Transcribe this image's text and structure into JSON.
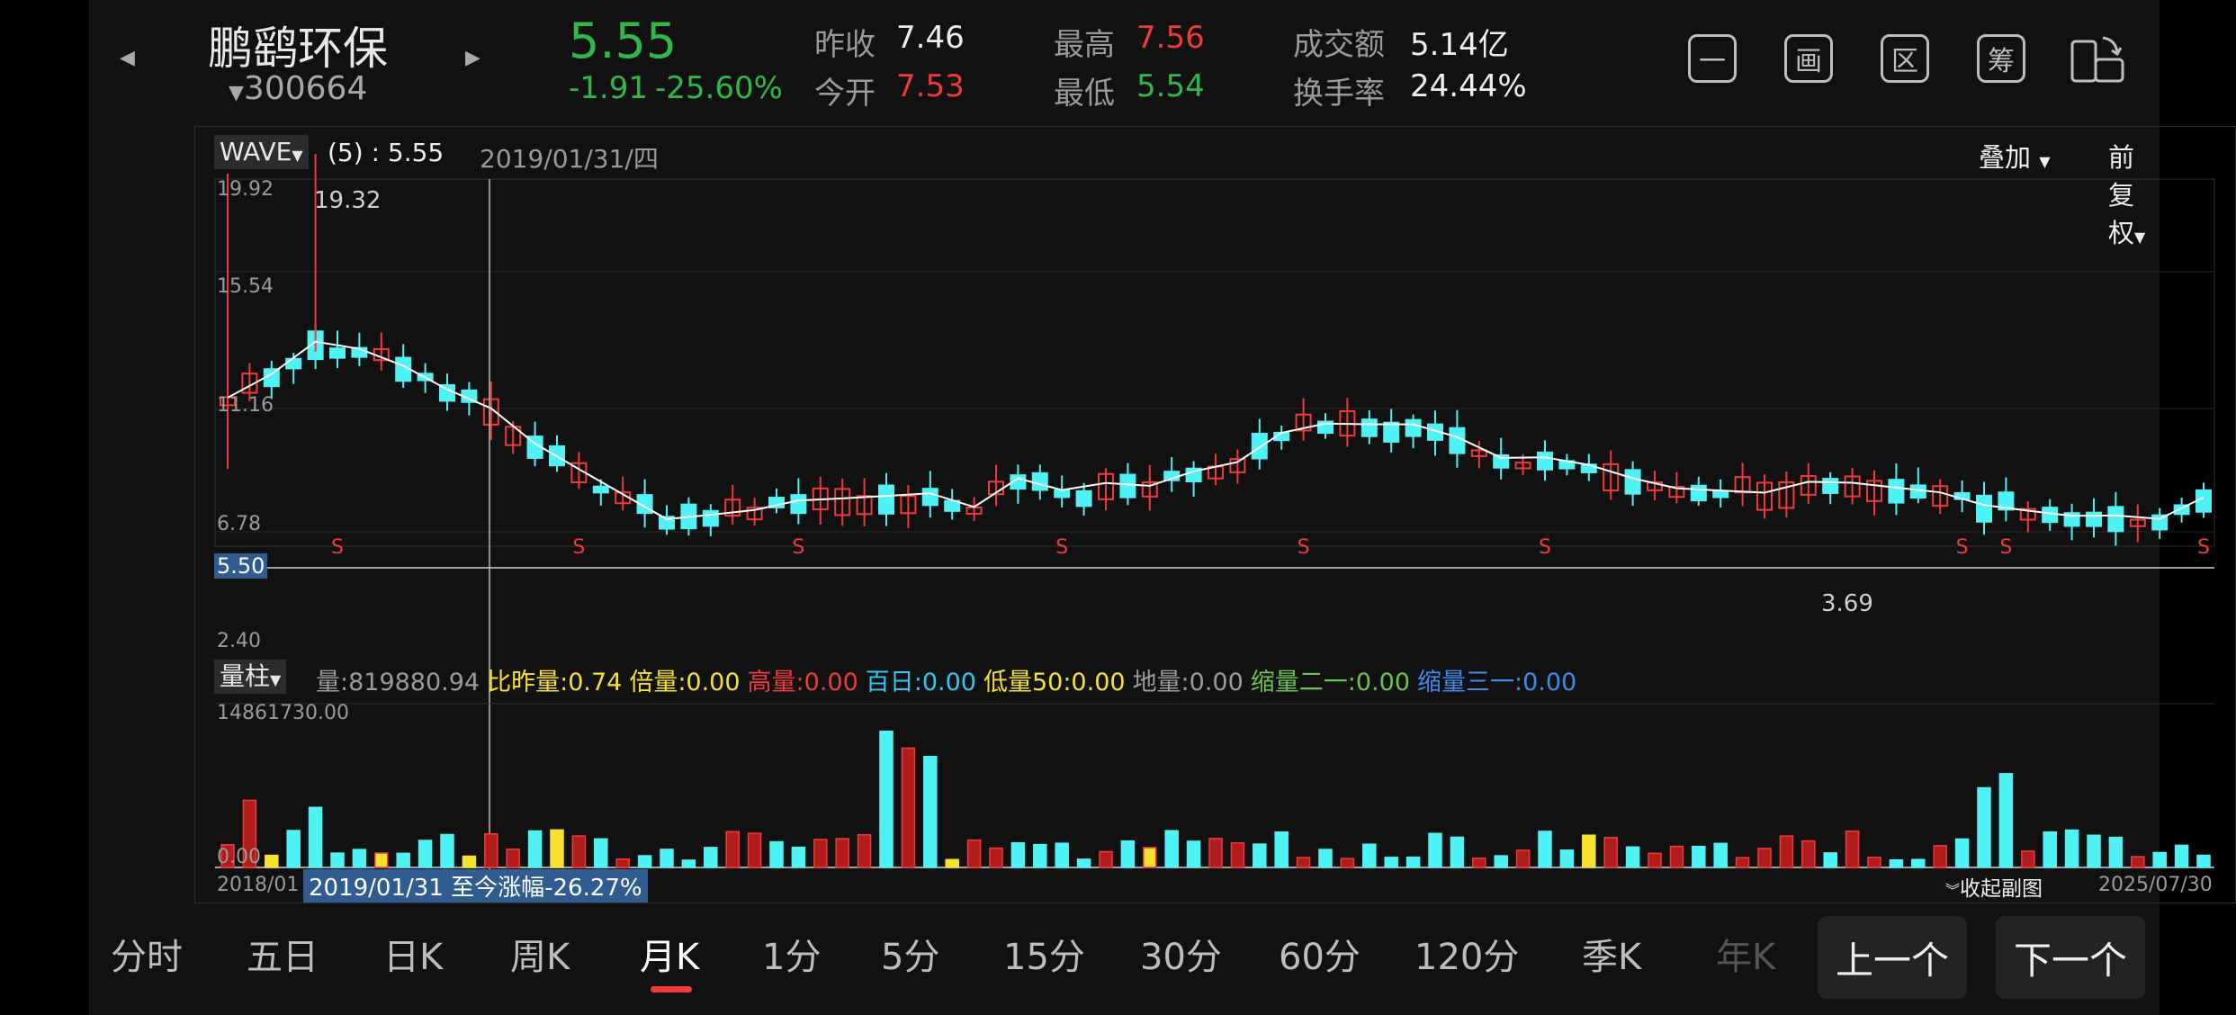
{
  "header": {
    "stock_name": "鹏鹞环保",
    "stock_code": "300664",
    "price": "5.55",
    "change": "-1.91",
    "change_pct": "-25.60%",
    "quotes": [
      {
        "label": "昨收",
        "value": "7.46"
      },
      {
        "label": "今开",
        "value": "7.53"
      },
      {
        "label": "最高",
        "value": "7.56"
      },
      {
        "label": "最低",
        "value": "5.54"
      },
      {
        "label": "成交额",
        "value": "5.14亿"
      },
      {
        "label": "换手率",
        "value": "24.44%"
      }
    ],
    "tool_buttons": [
      "⼀",
      "画",
      "区",
      "筹"
    ],
    "colors": {
      "up": "#f03a3a",
      "down": "#2fb84a",
      "cyan": "#4ff2f5"
    }
  },
  "main_chart": {
    "indicator": "WAVE",
    "indicator_value": "(5) : 5.55",
    "cursor_date": "2019/01/31/四",
    "overlay_button": "叠加",
    "adjust_button": "前复权",
    "y_labels": [
      "19.92",
      "15.54",
      "11.16",
      "6.78",
      "2.40"
    ],
    "current_price_tag": "5.50",
    "high_mark": "19.32",
    "low_mark": "3.69",
    "s_marker": "S"
  },
  "volume_panel": {
    "selector": "量柱",
    "stats": [
      {
        "label": "量:",
        "value": "819880.94",
        "color": "gray"
      },
      {
        "label": "比昨量:",
        "value": "0.74",
        "color": "yellow"
      },
      {
        "label": "倍量:",
        "value": "0.00",
        "color": "yellow"
      },
      {
        "label": "高量:",
        "value": "0.00",
        "color": "red"
      },
      {
        "label": "百日:",
        "value": "0.00",
        "color": "cyan"
      },
      {
        "label": "低量50:",
        "value": "0.00",
        "color": "yellow"
      },
      {
        "label": "地量:",
        "value": "0.00",
        "color": "gray"
      },
      {
        "label": "缩量二一:",
        "value": "0.00",
        "color": "green"
      },
      {
        "label": "缩量三一:",
        "value": "0.00",
        "color": "blue"
      }
    ],
    "y_max": "14861730.00",
    "y_min": "0.00",
    "start_date": "2018/01",
    "end_date": "2025/07/30",
    "range_note": "2019/01/31 至今涨幅-26.27%",
    "collapse_button": "收起副图"
  },
  "tabs": [
    "分时",
    "五日",
    "日K",
    "周K",
    "月K",
    "1分",
    "5分",
    "15分",
    "30分",
    "60分",
    "120分",
    "季K",
    "年K"
  ],
  "active_tab": "月K",
  "nav": {
    "prev": "上一个",
    "next": "下一个"
  }
}
